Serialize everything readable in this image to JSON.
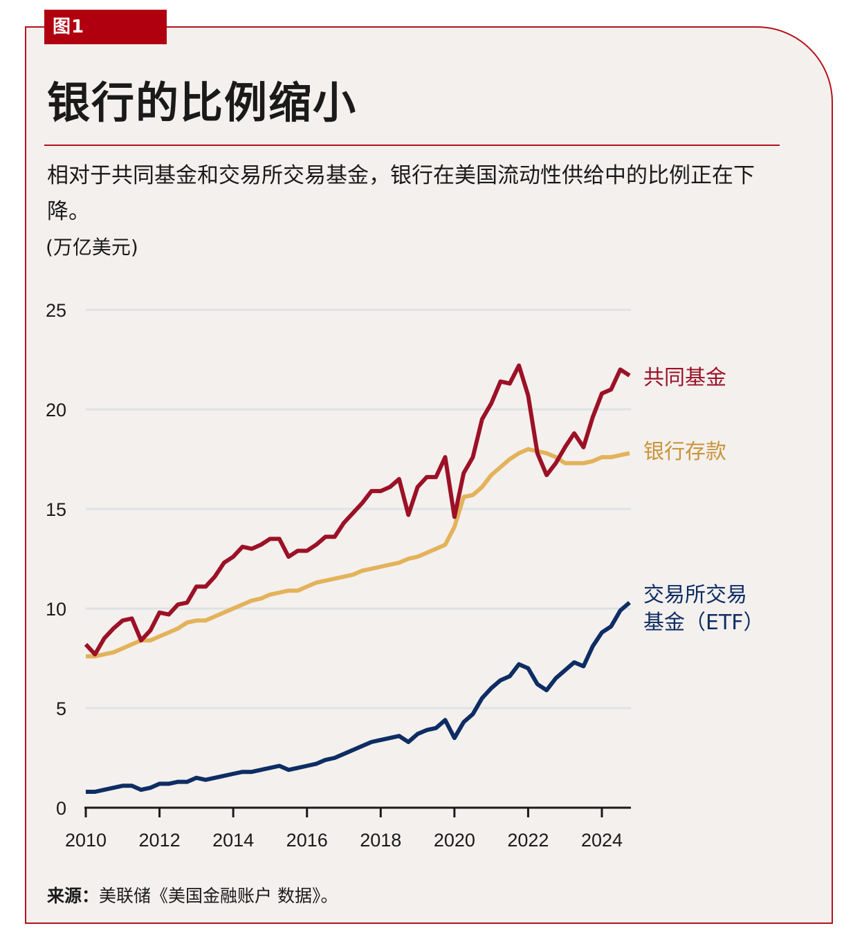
{
  "figure_tag": "图1",
  "title": "银行的比例缩小",
  "subtitle": "相对于共同基金和交易所交易基金，银行在美国流动性供给中的比例正在下降。",
  "units": "(万亿美元)",
  "source_prefix": "来源：",
  "source_text": "美联储《美国金融账户 数据》。",
  "colors": {
    "frame": "#b3121b",
    "tab": "#b0000f",
    "background": "#f4f0ee",
    "gridline": "#dde3e4",
    "mutual_funds": "#9b1126",
    "bank_deposits": "#e3b25a",
    "bank_deposits_label": "#c8953a",
    "etf": "#0d2d63"
  },
  "chart_data": {
    "type": "line",
    "title": "银行的比例缩小",
    "xlabel": "",
    "ylabel": "万亿美元",
    "xlim": [
      2010,
      2024.75
    ],
    "ylim": [
      0,
      25
    ],
    "yticks": [
      0,
      5,
      10,
      15,
      20,
      25
    ],
    "xticks": [
      2010,
      2012,
      2014,
      2016,
      2018,
      2020,
      2022,
      2024
    ],
    "grid": true,
    "legend": "direct-labels-right",
    "x_start": 2010,
    "x_step": 0.25,
    "series": [
      {
        "name": "共同基金",
        "key": "mutual_funds",
        "label_lines": [
          "共同基金"
        ],
        "values": [
          8.2,
          7.7,
          8.5,
          9.0,
          9.4,
          9.5,
          8.4,
          8.9,
          9.8,
          9.7,
          10.2,
          10.3,
          11.1,
          11.1,
          11.6,
          12.3,
          12.6,
          13.1,
          13.0,
          13.2,
          13.5,
          13.5,
          12.6,
          12.9,
          12.9,
          13.2,
          13.6,
          13.6,
          14.3,
          14.8,
          15.3,
          15.9,
          15.9,
          16.1,
          16.5,
          14.7,
          16.1,
          16.6,
          16.6,
          17.6,
          14.6,
          16.8,
          17.6,
          19.5,
          20.3,
          21.4,
          21.3,
          22.2,
          20.7,
          17.8,
          16.7,
          17.3,
          18.1,
          18.8,
          18.1,
          19.6,
          20.8,
          21.0,
          22.0,
          21.7
        ]
      },
      {
        "name": "银行存款",
        "key": "bank_deposits",
        "label_lines": [
          "银行存款"
        ],
        "values": [
          7.6,
          7.6,
          7.7,
          7.8,
          8.0,
          8.2,
          8.4,
          8.4,
          8.6,
          8.8,
          9.0,
          9.3,
          9.4,
          9.4,
          9.6,
          9.8,
          10.0,
          10.2,
          10.4,
          10.5,
          10.7,
          10.8,
          10.9,
          10.9,
          11.1,
          11.3,
          11.4,
          11.5,
          11.6,
          11.7,
          11.9,
          12.0,
          12.1,
          12.2,
          12.3,
          12.5,
          12.6,
          12.8,
          13.0,
          13.2,
          14.1,
          15.6,
          15.7,
          16.1,
          16.7,
          17.1,
          17.5,
          17.8,
          18.0,
          17.9,
          17.8,
          17.6,
          17.3,
          17.3,
          17.3,
          17.4,
          17.6,
          17.6,
          17.7,
          17.8
        ]
      },
      {
        "name": "交易所交易基金（ETF）",
        "key": "etf",
        "label_lines": [
          "交易所交易",
          "基金（ETF）"
        ],
        "values": [
          0.8,
          0.8,
          0.9,
          1.0,
          1.1,
          1.1,
          0.9,
          1.0,
          1.2,
          1.2,
          1.3,
          1.3,
          1.5,
          1.4,
          1.5,
          1.6,
          1.7,
          1.8,
          1.8,
          1.9,
          2.0,
          2.1,
          1.9,
          2.0,
          2.1,
          2.2,
          2.4,
          2.5,
          2.7,
          2.9,
          3.1,
          3.3,
          3.4,
          3.5,
          3.6,
          3.3,
          3.7,
          3.9,
          4.0,
          4.4,
          3.5,
          4.3,
          4.7,
          5.5,
          6.0,
          6.4,
          6.6,
          7.2,
          7.0,
          6.2,
          5.9,
          6.5,
          6.9,
          7.3,
          7.1,
          8.1,
          8.8,
          9.1,
          9.9,
          10.3
        ]
      }
    ]
  }
}
